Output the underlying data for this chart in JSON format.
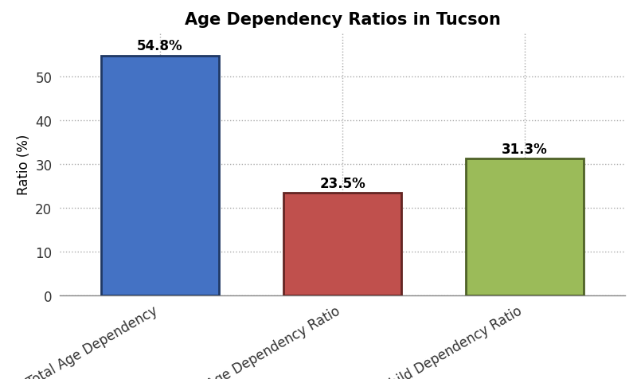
{
  "title": "Age Dependency Ratios in Tucson",
  "categories": [
    "Total Age Dependency",
    "Old Age Dependency Ratio",
    "Child Dependency Ratio"
  ],
  "values": [
    54.8,
    23.5,
    31.3
  ],
  "bar_colors": [
    "#4472C4",
    "#C0504D",
    "#9BBB59"
  ],
  "bar_edge_colors": [
    "#1F3864",
    "#632523",
    "#4F6228"
  ],
  "ylabel": "Ratio (%)",
  "ylim": [
    0,
    60
  ],
  "yticks": [
    0,
    10,
    20,
    30,
    40,
    50
  ],
  "title_fontsize": 15,
  "label_fontsize": 12,
  "tick_fontsize": 12,
  "annotation_fontsize": 12,
  "background_color": "#FFFFFF",
  "plot_bg_color": "#FFFFFF",
  "grid_color": "#AAAAAA",
  "bar_width": 0.65
}
